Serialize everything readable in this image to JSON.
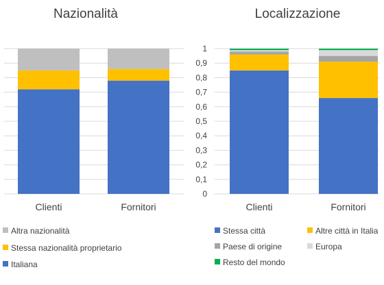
{
  "chart_data": [
    {
      "type": "bar",
      "stacked": true,
      "title": "Nazionalità",
      "categories": [
        "Clienti",
        "Fornitori"
      ],
      "ylim": [
        0,
        1
      ],
      "grid": true,
      "legend_placement": "bottom",
      "series": [
        {
          "name": "Italiana",
          "color": "#4472C4",
          "values": [
            0.72,
            0.78
          ]
        },
        {
          "name": "Stessa nazionalità proprietario",
          "color": "#FFC000",
          "values": [
            0.13,
            0.08
          ]
        },
        {
          "name": "Altra nazionalità",
          "color": "#BFBFBF",
          "values": [
            0.15,
            0.14
          ]
        }
      ]
    },
    {
      "type": "bar",
      "stacked": true,
      "title": "Localizzazione",
      "categories": [
        "Clienti",
        "Fornitori"
      ],
      "ylim": [
        0,
        1
      ],
      "yticks": [
        "0",
        "0,1",
        "0,2",
        "0,3",
        "0,4",
        "0,5",
        "0,6",
        "0,7",
        "0,8",
        "0,9",
        "1"
      ],
      "grid": true,
      "legend_placement": "bottom",
      "series": [
        {
          "name": "Stessa città",
          "color": "#4472C4",
          "values": [
            0.85,
            0.66
          ]
        },
        {
          "name": "Altre città in Italia",
          "color": "#FFC000",
          "values": [
            0.11,
            0.25
          ]
        },
        {
          "name": "Paese di origine",
          "color": "#A5A5A5",
          "values": [
            0.02,
            0.04
          ]
        },
        {
          "name": "Europa",
          "color": "#D9D9D9",
          "values": [
            0.01,
            0.04
          ]
        },
        {
          "name": "Resto del mondo",
          "color": "#00B050",
          "values": [
            0.01,
            0.01
          ]
        }
      ]
    }
  ]
}
